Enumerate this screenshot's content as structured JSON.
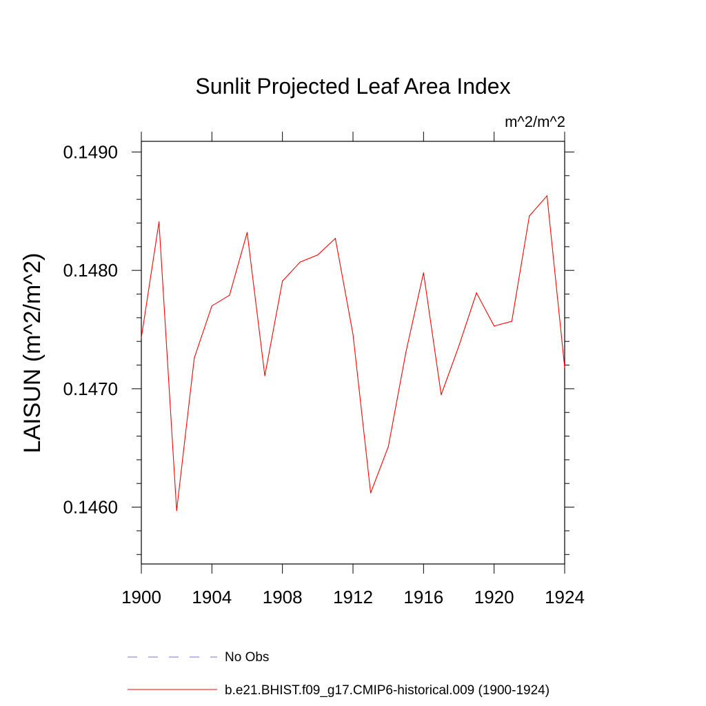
{
  "chart_data": {
    "type": "line",
    "title": "Sunlit Projected Leaf Area Index",
    "units": "m^2/m^2",
    "ylabel": "LAISUN  (m^2/m^2)",
    "xlabel": "",
    "xlim": [
      1900,
      1924
    ],
    "ylim": [
      0.14552,
      0.14909
    ],
    "x_ticks": [
      "1900",
      "1904",
      "1908",
      "1912",
      "1916",
      "1920",
      "1924"
    ],
    "y_ticks": [
      "0.1460",
      "0.1470",
      "0.1480",
      "0.1490"
    ],
    "grid": false,
    "legend_position": "bottom",
    "series": [
      {
        "name": "b.e21.BHIST.f09_g17.CMIP6-historical.009 (1900-1924)",
        "color": "#ff0000",
        "x": [
          1900,
          1901,
          1902,
          1903,
          1904,
          1905,
          1906,
          1907,
          1908,
          1909,
          1910,
          1911,
          1912,
          1913,
          1914,
          1915,
          1916,
          1917,
          1918,
          1919,
          1920,
          1921,
          1922,
          1923,
          1924
        ],
        "y": [
          0.14743,
          0.14841,
          0.14597,
          0.14726,
          0.1477,
          0.14779,
          0.14832,
          0.14711,
          0.14791,
          0.14807,
          0.14813,
          0.14827,
          0.14746,
          0.14612,
          0.14651,
          0.14731,
          0.14798,
          0.14695,
          0.14736,
          0.14781,
          0.14753,
          0.14757,
          0.14846,
          0.14863,
          0.14718
        ]
      }
    ],
    "legend": [
      {
        "label": "No Obs",
        "color": "#7b72c6",
        "style": "dashed"
      },
      {
        "label": "b.e21.BHIST.f09_g17.CMIP6-historical.009 (1900-1924)",
        "color": "#ff0000",
        "style": "solid"
      }
    ]
  }
}
